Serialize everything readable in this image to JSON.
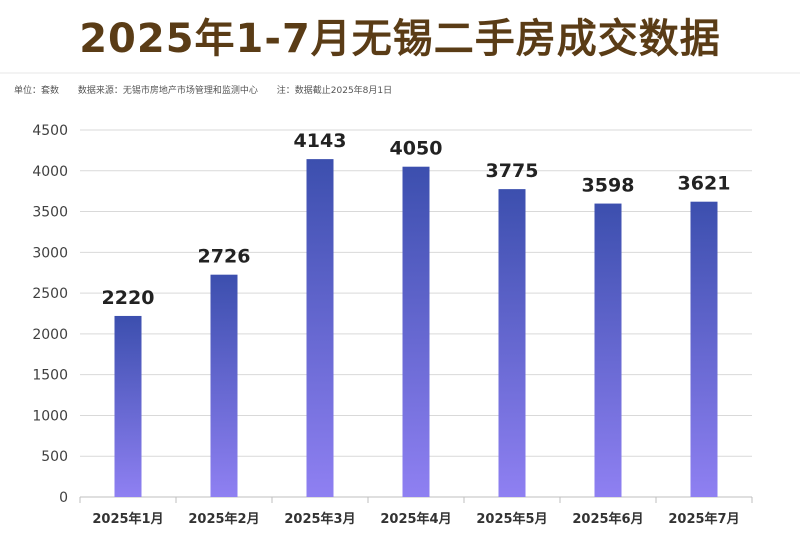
{
  "title": "2025年1-7月无锡二手房成交数据",
  "meta": {
    "unit": "单位：套数",
    "source": "数据来源：无锡市房地产市场管理和监测中心",
    "note": "注：数据截止2025年8月1日"
  },
  "colors": {
    "title": "#5a3c16",
    "bar_top": "#3c4fae",
    "bar_bottom": "#8f80f2",
    "grid": "#d9d9d9",
    "axis_text": "#404040",
    "value_text": "#222222"
  },
  "chart_data": {
    "type": "bar",
    "categories": [
      "2025年1月",
      "2025年2月",
      "2025年3月",
      "2025年4月",
      "2025年5月",
      "2025年6月",
      "2025年7月"
    ],
    "values": [
      2220,
      2726,
      4143,
      4050,
      3775,
      3598,
      3621
    ],
    "data_labels": [
      "2220",
      "2726",
      "4143",
      "4050",
      "3775",
      "3598",
      "3621"
    ],
    "yticks": [
      0,
      500,
      1000,
      1500,
      2000,
      2500,
      3000,
      3500,
      4000,
      4500
    ],
    "ylim": [
      0,
      4500
    ],
    "grid": true,
    "legend": "none"
  }
}
